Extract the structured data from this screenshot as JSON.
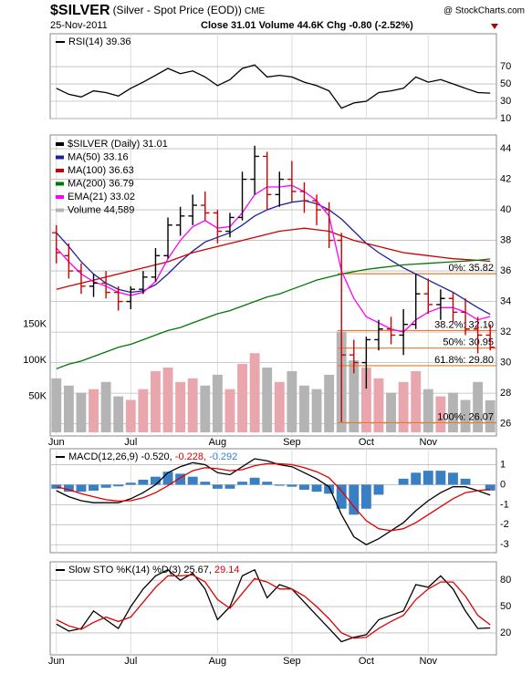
{
  "header": {
    "symbol": "$SILVER",
    "description": "(Silver - Spot Price (EOD))",
    "exchange": "CME",
    "source": "@ StockCharts.com",
    "date": "25-Nov-2011",
    "close": "Close 31.01",
    "volume": "Volume 44.6K",
    "change": "Chg -0.80 (-2.52%)"
  },
  "chart_data": [
    {
      "type": "line",
      "ylim": [
        10,
        108
      ],
      "yticks": [
        70,
        50,
        30,
        10
      ],
      "grid": true,
      "series": [
        {
          "name": "RSI(14) 39.36",
          "color": "#000000",
          "values": [
            45,
            38,
            35,
            42,
            40,
            36,
            45,
            52,
            60,
            68,
            62,
            65,
            58,
            48,
            55,
            68,
            72,
            58,
            60,
            58,
            52,
            48,
            42,
            22,
            28,
            30,
            40,
            42,
            45,
            58,
            52,
            55,
            50,
            45,
            40,
            39.36
          ]
        }
      ]
    },
    {
      "type": "ohlc",
      "name": "$SILVER (Daily) 31.01",
      "ylim": [
        25.2,
        44.9
      ],
      "yticks": [
        44,
        42,
        40,
        38,
        36,
        34,
        32,
        30,
        28,
        26
      ],
      "grid": true,
      "up_color": "#000000",
      "down_color": "#cc0000",
      "categories": [
        "Jun",
        null,
        null,
        null,
        null,
        null,
        "Jul",
        null,
        null,
        null,
        null,
        null,
        null,
        "Aug",
        null,
        null,
        null,
        null,
        null,
        "Sep",
        null,
        null,
        null,
        null,
        null,
        "Oct",
        null,
        null,
        null,
        null,
        "Nov",
        null,
        null,
        null,
        null,
        null
      ],
      "open": [
        38.5,
        37,
        36,
        35,
        35.2,
        34.6,
        34,
        34.8,
        35.6,
        37,
        39,
        39.6,
        40.3,
        39.8,
        38.6,
        39.5,
        42,
        43.5,
        41,
        42,
        41.2,
        40.6,
        40,
        38,
        30.5,
        30,
        31.5,
        32.2,
        31.8,
        32.5,
        34.5,
        33.8,
        34.2,
        33.3,
        32.2,
        31.8
      ],
      "high": [
        39,
        37.8,
        36.5,
        35.8,
        36,
        35,
        35,
        36,
        37.5,
        39.5,
        40.2,
        41,
        41.2,
        40,
        39.8,
        42.5,
        44.2,
        43.8,
        42.5,
        43.2,
        41.8,
        41,
        40.5,
        38.5,
        31.5,
        31.7,
        32.8,
        33,
        33.5,
        35.8,
        35.5,
        34.8,
        34.6,
        34.2,
        33,
        32.5
      ],
      "low": [
        36.5,
        35.5,
        34.5,
        34.3,
        34.2,
        33.4,
        33.5,
        34.5,
        35.3,
        36.8,
        38.3,
        39,
        39.3,
        37.8,
        38.2,
        39.3,
        41,
        40,
        40.2,
        40.5,
        39.8,
        39,
        37.5,
        26.1,
        29.3,
        28.3,
        30.8,
        31.2,
        30.5,
        32.2,
        33.2,
        32.8,
        32.6,
        31.8,
        30.6,
        30.8
      ],
      "close": [
        37.2,
        36,
        35,
        35.2,
        34.6,
        34,
        34.8,
        35.6,
        37,
        39,
        39.6,
        40.3,
        39.8,
        38.6,
        39.5,
        42,
        43.5,
        41,
        42,
        41.2,
        40.6,
        40,
        38,
        30.5,
        30,
        31.5,
        32.2,
        31.8,
        32.5,
        34.5,
        33.8,
        34.2,
        33.3,
        32.2,
        31.8,
        31.01
      ],
      "series": [
        {
          "name": "MA(50) 33.16",
          "color": "#1f1f9f",
          "values": [
            38.5,
            37.6,
            36.6,
            35.8,
            35.2,
            34.8,
            34.6,
            34.7,
            35.1,
            35.8,
            36.6,
            37.3,
            37.9,
            38.2,
            38.5,
            39,
            39.6,
            40,
            40.3,
            40.5,
            40.6,
            40.4,
            40,
            39.4,
            38.6,
            37.8,
            37.2,
            36.7,
            36.2,
            35.8,
            35.4,
            35,
            34.6,
            34.1,
            33.6,
            33.16
          ]
        },
        {
          "name": "MA(100) 36.63",
          "color": "#cc0000",
          "values": [
            34.8,
            35,
            35.2,
            35.4,
            35.6,
            35.8,
            36,
            36.2,
            36.4,
            36.6,
            36.9,
            37.2,
            37.4,
            37.6,
            37.8,
            38,
            38.2,
            38.4,
            38.6,
            38.7,
            38.8,
            38.7,
            38.6,
            38.3,
            38,
            37.8,
            37.6,
            37.4,
            37.2,
            37.1,
            37,
            36.9,
            36.8,
            36.75,
            36.7,
            36.63
          ]
        },
        {
          "name": "MA(200) 36.79",
          "color": "#007700",
          "values": [
            29.6,
            29.9,
            30.1,
            30.4,
            30.7,
            31,
            31.2,
            31.5,
            31.8,
            32.1,
            32.3,
            32.6,
            32.9,
            33.2,
            33.4,
            33.7,
            34,
            34.3,
            34.5,
            34.8,
            35.1,
            35.4,
            35.6,
            35.8,
            35.95,
            36.1,
            36.2,
            36.3,
            36.4,
            36.45,
            36.5,
            36.55,
            36.6,
            36.65,
            36.7,
            36.79
          ]
        },
        {
          "name": "EMA(21) 33.02",
          "color": "#ff00ff",
          "values": [
            37.5,
            36.6,
            35.8,
            35.3,
            35,
            34.6,
            34.4,
            34.6,
            35.3,
            36.8,
            38,
            38.9,
            39.3,
            38.8,
            38.9,
            39.8,
            41,
            41.5,
            41.5,
            41.6,
            41.2,
            40.6,
            39.6,
            36,
            34.2,
            33,
            32.6,
            32.2,
            32,
            32.8,
            33.3,
            33.6,
            33.6,
            33.3,
            32.8,
            33.02
          ]
        }
      ],
      "volume": {
        "name": "Volume 44,589",
        "up_color": "#e9a6ad",
        "down_color": "#b4b4b4",
        "ylim": [
          -5,
          413
        ],
        "yticks": [
          {
            "value": 150,
            "label": "150K"
          },
          {
            "value": 100,
            "label": "100K"
          },
          {
            "value": 50,
            "label": "50K"
          }
        ],
        "values": [
          75,
          65,
          55,
          60,
          70,
          50,
          45,
          60,
          85,
          90,
          70,
          75,
          65,
          80,
          60,
          95,
          110,
          90,
          70,
          85,
          65,
          60,
          80,
          140,
          100,
          90,
          75,
          55,
          70,
          85,
          60,
          50,
          55,
          45,
          70,
          44.6
        ]
      },
      "level_color": "#e8782a",
      "levels": [
        {
          "label": "0%: 35.82",
          "value": 35.82
        },
        {
          "label": "38.2%: 32.10",
          "value": 32.1
        },
        {
          "label": "50%: 30.95",
          "value": 30.95
        },
        {
          "label": "61.8%: 29.80",
          "value": 29.8
        },
        {
          "label": "100%: 26.07",
          "value": 26.07
        }
      ]
    },
    {
      "type": "line",
      "ylim": [
        -3.4,
        1.8
      ],
      "yticks": [
        1,
        0,
        -1,
        -2,
        -3
      ],
      "grid": true,
      "series": [
        {
          "name": "-0.292",
          "color": "#3a7fc4",
          "style": "bar",
          "values": [
            -0.2,
            -0.35,
            -0.35,
            -0.3,
            -0.15,
            -0.08,
            0.1,
            0.25,
            0.4,
            0.65,
            0.55,
            0.4,
            0.15,
            -0.2,
            -0.2,
            0.15,
            0.35,
            0.15,
            -0.05,
            -0.1,
            -0.25,
            -0.35,
            -0.45,
            -1.2,
            -1.5,
            -1.2,
            -0.5,
            0,
            0.3,
            0.6,
            0.7,
            0.7,
            0.6,
            0.3,
            0,
            -0.292
          ]
        },
        {
          "name": "MACD(12,26,9) -0.520,",
          "color": "#000000",
          "values": [
            -0.3,
            -0.6,
            -0.8,
            -0.9,
            -0.9,
            -0.9,
            -0.7,
            -0.4,
            0,
            0.6,
            0.9,
            1.1,
            1,
            0.6,
            0.5,
            0.9,
            1.3,
            1.2,
            1,
            0.9,
            0.6,
            0.3,
            -0.1,
            -1.5,
            -2.6,
            -3,
            -2.7,
            -2.3,
            -1.9,
            -1.3,
            -0.8,
            -0.4,
            -0.1,
            -0.1,
            -0.3,
            -0.52
          ]
        },
        {
          "name": "-0.228,",
          "color": "#dd0000",
          "values": [
            -0.1,
            -0.25,
            -0.45,
            -0.6,
            -0.75,
            -0.82,
            -0.8,
            -0.65,
            -0.4,
            -0.05,
            0.35,
            0.7,
            0.85,
            0.8,
            0.7,
            0.75,
            0.95,
            1.05,
            1.05,
            1,
            0.85,
            0.65,
            0.35,
            -0.3,
            -1.1,
            -1.8,
            -2.2,
            -2.3,
            -2.2,
            -1.9,
            -1.5,
            -1.1,
            -0.7,
            -0.4,
            -0.3,
            -0.228
          ]
        }
      ]
    },
    {
      "type": "line",
      "ylim": [
        -5,
        101
      ],
      "yticks": [
        80,
        50,
        20
      ],
      "grid": true,
      "series": [
        {
          "name": "Slow STO %K(14) %D(3) 25.67,",
          "color": "#000000",
          "values": [
            30,
            22,
            25,
            45,
            35,
            25,
            50,
            70,
            85,
            92,
            80,
            88,
            70,
            35,
            50,
            85,
            92,
            60,
            75,
            70,
            55,
            40,
            25,
            10,
            15,
            18,
            35,
            40,
            45,
            75,
            72,
            85,
            70,
            45,
            25,
            25.67
          ]
        },
        {
          "name": "29.14",
          "color": "#dd0000",
          "values": [
            35,
            28,
            24,
            32,
            38,
            33,
            38,
            55,
            72,
            85,
            85,
            86,
            78,
            58,
            48,
            65,
            82,
            78,
            70,
            70,
            62,
            50,
            36,
            20,
            14,
            15,
            25,
            33,
            40,
            58,
            70,
            78,
            78,
            62,
            40,
            29.14
          ]
        }
      ]
    }
  ]
}
